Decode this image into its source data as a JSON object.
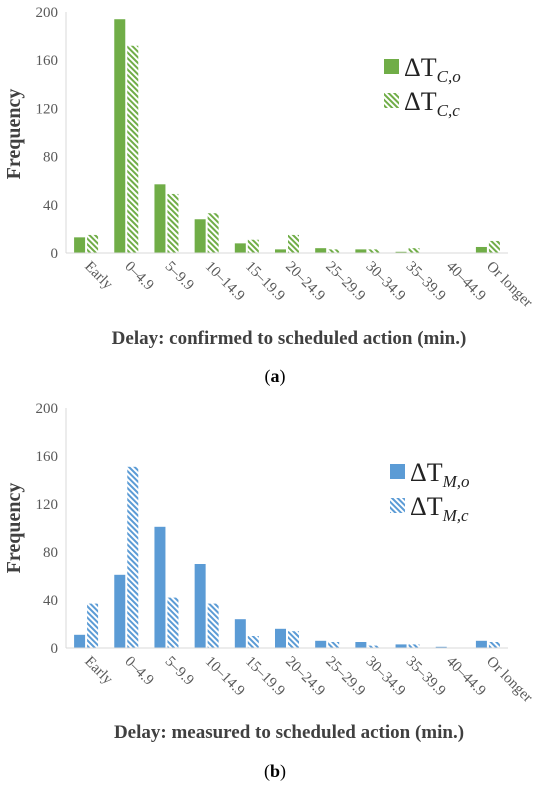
{
  "chart_data": [
    {
      "type": "bar",
      "panel_label": "a",
      "title": "",
      "xlabel": "Delay: confirmed to scheduled action (min.)",
      "ylabel": "Frequency",
      "ylim": [
        0,
        200
      ],
      "yticks": [
        0,
        40,
        80,
        120,
        160,
        200
      ],
      "categories": [
        "Early",
        "0–4.9",
        "5–9.9",
        "10–14.9",
        "15–19.9",
        "20–24.9",
        "25–29.9",
        "30–34.9",
        "35–39.9",
        "40–44.9",
        "Or longer"
      ],
      "series": [
        {
          "name": "ΔT",
          "subscript": "C,o",
          "pattern": "solid",
          "color": "#70ad47",
          "values": [
            13,
            194,
            57,
            28,
            8,
            3,
            4,
            3,
            1,
            0,
            5
          ]
        },
        {
          "name": "ΔT",
          "subscript": "C,c",
          "pattern": "hatched",
          "color": "#70ad47",
          "values": [
            15,
            172,
            49,
            33,
            11,
            15,
            3,
            3,
            4,
            0,
            10
          ]
        }
      ],
      "grid": false,
      "legend": "top-right"
    },
    {
      "type": "bar",
      "panel_label": "b",
      "title": "",
      "xlabel": "Delay: measured to scheduled action (min.)",
      "ylabel": "Frequency",
      "ylim": [
        0,
        200
      ],
      "yticks": [
        0,
        40,
        80,
        120,
        160,
        200
      ],
      "categories": [
        "Early",
        "0–4.9",
        "5–9.9",
        "10–14.9",
        "15–19.9",
        "20–24.9",
        "25–29.9",
        "30–34.9",
        "35–39.9",
        "40–44.9",
        "Or longer"
      ],
      "series": [
        {
          "name": "ΔT",
          "subscript": "M,o",
          "pattern": "solid",
          "color": "#5b9bd5",
          "values": [
            11,
            61,
            101,
            70,
            24,
            16,
            6,
            5,
            3,
            1,
            6
          ]
        },
        {
          "name": "ΔT",
          "subscript": "M,c",
          "pattern": "hatched",
          "color": "#5b9bd5",
          "values": [
            37,
            151,
            42,
            37,
            10,
            14,
            5,
            2,
            3,
            0,
            5
          ]
        }
      ],
      "grid": false,
      "legend": "right"
    }
  ]
}
